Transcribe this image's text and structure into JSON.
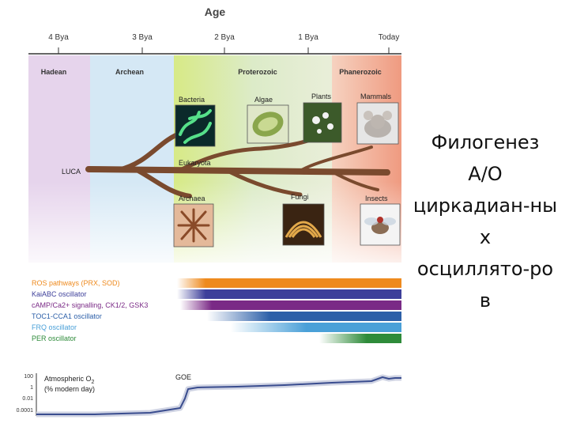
{
  "axis": {
    "title": "Age",
    "ticks": [
      "4 Bya",
      "3 Bya",
      "2 Bya",
      "1 Bya",
      "Today"
    ]
  },
  "eras": [
    "Hadean",
    "Archean",
    "Proterozoic",
    "Phanerozoic"
  ],
  "organisms": {
    "luca": "LUCA",
    "bacteria": "Bacteria",
    "algae": "Algae",
    "plants": "Plants",
    "mammals": "Mammals",
    "eukaryota": "Eukaryota",
    "archaea": "Archaea",
    "fungi": "Fungi",
    "insects": "Insects"
  },
  "oscillators": [
    {
      "label": "ROS pathways (PRX, SOD)",
      "color": "#ee8a1e"
    },
    {
      "label": "KaiABC oscillator",
      "color": "#3d3f9a"
    },
    {
      "label": "cAMP/Ca2+ signalling, CK1/2, GSK3",
      "color": "#7a2a86"
    },
    {
      "label": "TOC1-CCA1 oscillator",
      "color": "#2c5fa8"
    },
    {
      "label": "FRQ oscillator",
      "color": "#4aa0d8"
    },
    {
      "label": "PER oscillator",
      "color": "#2e8b3a"
    }
  ],
  "oxygen": {
    "label_main": "Atmospheric O",
    "label_sub": "2",
    "label_line2": "(% modern day)",
    "event": "GOE",
    "y_ticks": [
      "100",
      "1",
      "0.01",
      "0.0001"
    ]
  },
  "side_text": {
    "line1": "Филогенез",
    "line2": "А/О",
    "line3": "циркадиан-ны",
    "line4": "х",
    "line5": "осциллято-ро",
    "line6": "в"
  },
  "colors": {
    "hadean": "#e7d3ec",
    "archean": "#d6e9f6",
    "proterozoic": "#d9ebc6",
    "phanerozoic": "#f4c4b0",
    "branch": "#7a4a2e",
    "o2_line": "#3a4d8f"
  }
}
